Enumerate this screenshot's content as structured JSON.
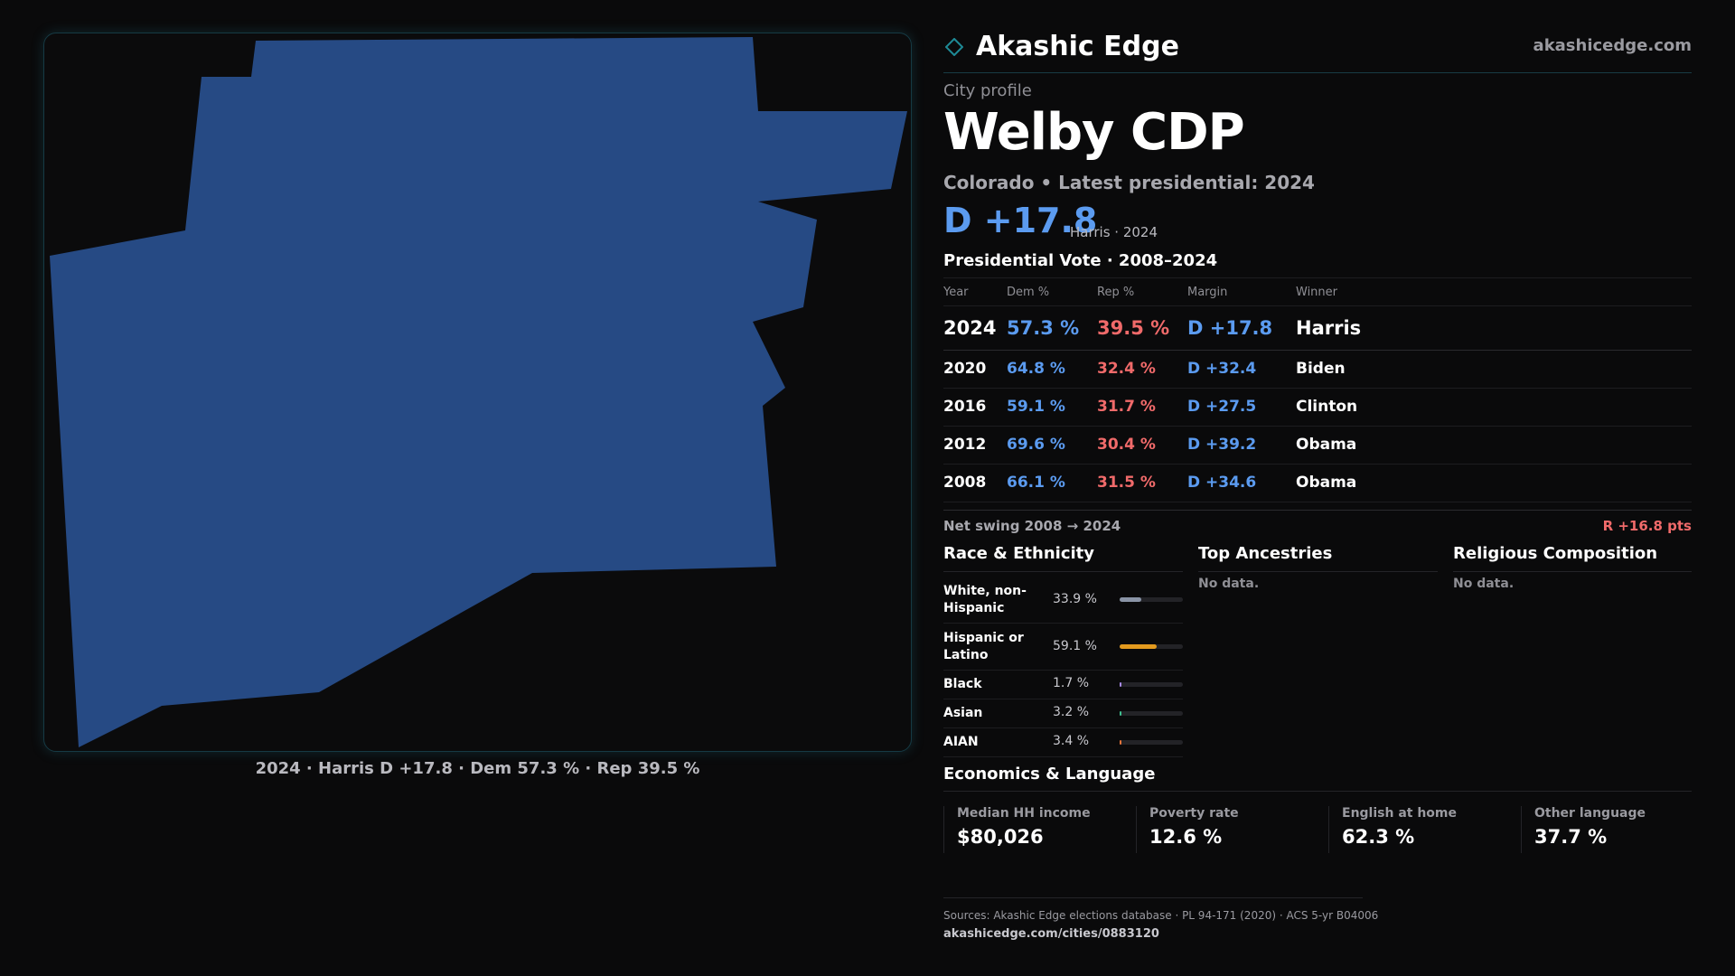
{
  "brand": {
    "name": "Akashic Edge",
    "url": "akashicedge.com"
  },
  "profile": {
    "label": "City profile",
    "title": "Welby CDP",
    "subtitle": "Colorado • Latest presidential: 2024",
    "margin": "D +17.8",
    "margin_note": "Harris · 2024"
  },
  "map": {
    "caption": "2024 · Harris D +17.8 · Dem 57.3 % · Rep 39.5 %",
    "fill_color": "#264a84"
  },
  "vote": {
    "title": "Presidential Vote · 2008–2024",
    "headers": {
      "year": "Year",
      "dem": "Dem %",
      "rep": "Rep %",
      "margin": "Margin",
      "winner": "Winner"
    },
    "rows": [
      {
        "year": "2024",
        "dem": "57.3 %",
        "rep": "39.5 %",
        "margin": "D +17.8",
        "winner": "Harris"
      },
      {
        "year": "2020",
        "dem": "64.8 %",
        "rep": "32.4 %",
        "margin": "D +32.4",
        "winner": "Biden"
      },
      {
        "year": "2016",
        "dem": "59.1 %",
        "rep": "31.7 %",
        "margin": "D +27.5",
        "winner": "Clinton"
      },
      {
        "year": "2012",
        "dem": "69.6 %",
        "rep": "30.4 %",
        "margin": "D +39.2",
        "winner": "Obama"
      },
      {
        "year": "2008",
        "dem": "66.1 %",
        "rep": "31.5 %",
        "margin": "D +34.6",
        "winner": "Obama"
      }
    ],
    "swing_label": "Net swing 2008 → 2024",
    "swing_value": "R +16.8 pts"
  },
  "race": {
    "title": "Race & Ethnicity",
    "rows": [
      {
        "name": "White, non-Hispanic",
        "value": "33.9 %",
        "pct": 33.9,
        "color": "#8a94a6"
      },
      {
        "name": "Hispanic or Latino",
        "value": "59.1 %",
        "pct": 59.1,
        "color": "#e39a1e"
      },
      {
        "name": "Black",
        "value": "1.7 %",
        "pct": 1.7,
        "color": "#a98ae8"
      },
      {
        "name": "Asian",
        "value": "3.2 %",
        "pct": 3.2,
        "color": "#3fbf8f"
      },
      {
        "name": "AIAN",
        "value": "3.4 %",
        "pct": 3.4,
        "color": "#e8743a"
      }
    ]
  },
  "ancestries": {
    "title": "Top Ancestries",
    "empty": "No data."
  },
  "religion": {
    "title": "Religious Composition",
    "empty": "No data."
  },
  "economics": {
    "title": "Economics & Language",
    "cells": [
      {
        "label": "Median HH income",
        "value": "$80,026"
      },
      {
        "label": "Poverty rate",
        "value": "12.6 %"
      },
      {
        "label": "English at home",
        "value": "62.3 %"
      },
      {
        "label": "Other language",
        "value": "37.7 %"
      }
    ]
  },
  "sources": {
    "text": "Sources: Akashic Edge elections database · PL 94-171 (2020) · ACS 5-yr B04006",
    "url": "akashicedge.com/cities/0883120"
  },
  "colors": {
    "dem": "#5b9bf0",
    "rep": "#f06a6a",
    "accent": "#1e6e7a"
  }
}
